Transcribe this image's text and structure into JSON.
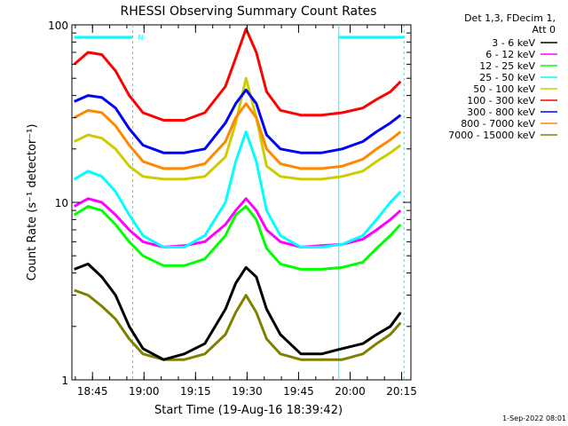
{
  "chart_data": {
    "type": "line",
    "title": "RHESSI Observing Summary Count Rates",
    "xlabel": "Start Time (19-Aug-16 18:39:42)",
    "ylabel": "Count Rate (s⁻¹ detector⁻¹)",
    "yscale": "log",
    "ylim": [
      1,
      100
    ],
    "xlim_minutes": [
      -0.7,
      98
    ],
    "x_ticks": [
      {
        "m": 5.3,
        "label": "18:45"
      },
      {
        "m": 20.3,
        "label": "19:00"
      },
      {
        "m": 35.3,
        "label": "19:15"
      },
      {
        "m": 50.3,
        "label": "19:30"
      },
      {
        "m": 65.3,
        "label": "19:45"
      },
      {
        "m": 80.3,
        "label": "20:00"
      },
      {
        "m": 95.3,
        "label": "20:15"
      }
    ],
    "y_ticks": [
      {
        "v": 1,
        "label": "1"
      },
      {
        "v": 10,
        "label": "10"
      },
      {
        "v": 100,
        "label": "100"
      }
    ],
    "legend_header": [
      "Det 1,3, FDecim 1,",
      "Att 0"
    ],
    "legend_position": "right",
    "grid": false,
    "time_points_minutes": [
      0,
      4,
      8,
      12,
      16,
      20,
      26,
      32,
      38,
      44,
      47,
      50,
      53,
      56,
      60,
      66,
      72,
      78,
      84,
      88,
      92,
      95
    ],
    "series": [
      {
        "name": "3 - 6 keV",
        "color": "#000000",
        "values": [
          4.2,
          4.5,
          3.8,
          3.0,
          2.0,
          1.5,
          1.3,
          1.4,
          1.6,
          2.5,
          3.5,
          4.3,
          3.8,
          2.5,
          1.8,
          1.4,
          1.4,
          1.5,
          1.6,
          1.8,
          2.0,
          2.4
        ]
      },
      {
        "name": "6 - 12 keV",
        "color": "#ff00ff",
        "values": [
          9.5,
          10.5,
          10.0,
          8.5,
          7.0,
          6.0,
          5.6,
          5.7,
          6.0,
          7.5,
          9.0,
          10.5,
          9.0,
          7.0,
          6.0,
          5.6,
          5.7,
          5.8,
          6.2,
          7.0,
          8.0,
          9.0
        ]
      },
      {
        "name": "12 - 25 keV",
        "color": "#00ff00",
        "values": [
          8.5,
          9.5,
          9.0,
          7.5,
          6.0,
          5.0,
          4.4,
          4.4,
          4.8,
          6.5,
          8.5,
          9.5,
          8.0,
          5.5,
          4.5,
          4.2,
          4.2,
          4.3,
          4.6,
          5.5,
          6.5,
          7.5
        ]
      },
      {
        "name": "25 - 50 keV",
        "color": "#00ffff",
        "values": [
          13.5,
          15.0,
          14.0,
          11.5,
          8.5,
          6.5,
          5.6,
          5.6,
          6.5,
          10.0,
          17.0,
          25.0,
          17.0,
          9.0,
          6.5,
          5.6,
          5.6,
          5.8,
          6.5,
          8.0,
          10.0,
          11.5
        ]
      },
      {
        "name": "50 - 100 keV",
        "color": "#cccc00",
        "values": [
          22.0,
          24.0,
          23.0,
          20.0,
          16.0,
          14.0,
          13.5,
          13.5,
          14.0,
          18.0,
          28.0,
          50.0,
          30.0,
          16.0,
          14.0,
          13.5,
          13.5,
          14.0,
          15.0,
          17.0,
          19.0,
          21.0
        ]
      },
      {
        "name": "100 - 300 keV",
        "color": "#ff0000",
        "values": [
          60.0,
          70.0,
          68.0,
          55.0,
          40.0,
          32.0,
          29.0,
          29.0,
          32.0,
          45.0,
          65.0,
          95.0,
          70.0,
          42.0,
          33.0,
          31.0,
          31.0,
          32.0,
          34.0,
          38.0,
          42.0,
          48.0
        ]
      },
      {
        "name": "300 - 800 keV",
        "color": "#0000ff",
        "values": [
          37.0,
          40.0,
          39.0,
          34.0,
          26.0,
          21.0,
          19.0,
          19.0,
          20.0,
          28.0,
          36.0,
          43.0,
          36.0,
          24.0,
          20.0,
          19.0,
          19.0,
          20.0,
          22.0,
          25.0,
          28.0,
          31.0
        ]
      },
      {
        "name": "800 - 7000 keV",
        "color": "#ff8800",
        "values": [
          30.0,
          33.0,
          32.0,
          27.0,
          21.0,
          17.0,
          15.5,
          15.5,
          16.5,
          22.0,
          30.0,
          36.0,
          30.0,
          20.0,
          16.5,
          15.5,
          15.5,
          16.0,
          17.5,
          20.0,
          22.5,
          25.0
        ]
      },
      {
        "name": "7000 - 15000 keV",
        "color": "#808000",
        "values": [
          3.2,
          3.0,
          2.6,
          2.2,
          1.7,
          1.4,
          1.3,
          1.3,
          1.4,
          1.8,
          2.4,
          3.0,
          2.4,
          1.7,
          1.4,
          1.3,
          1.3,
          1.3,
          1.4,
          1.6,
          1.8,
          2.1
        ]
      }
    ],
    "flag_bars": [
      {
        "color": "#00ffff",
        "from_minutes": 0,
        "to_minutes": 17,
        "label": "N"
      },
      {
        "color": "#00ffff",
        "from_minutes": 77,
        "to_minutes": 96,
        "label": ""
      }
    ],
    "vertical_markers_minutes": [
      17,
      77,
      96
    ],
    "timestamp": "1-Sep-2022 08:01"
  }
}
